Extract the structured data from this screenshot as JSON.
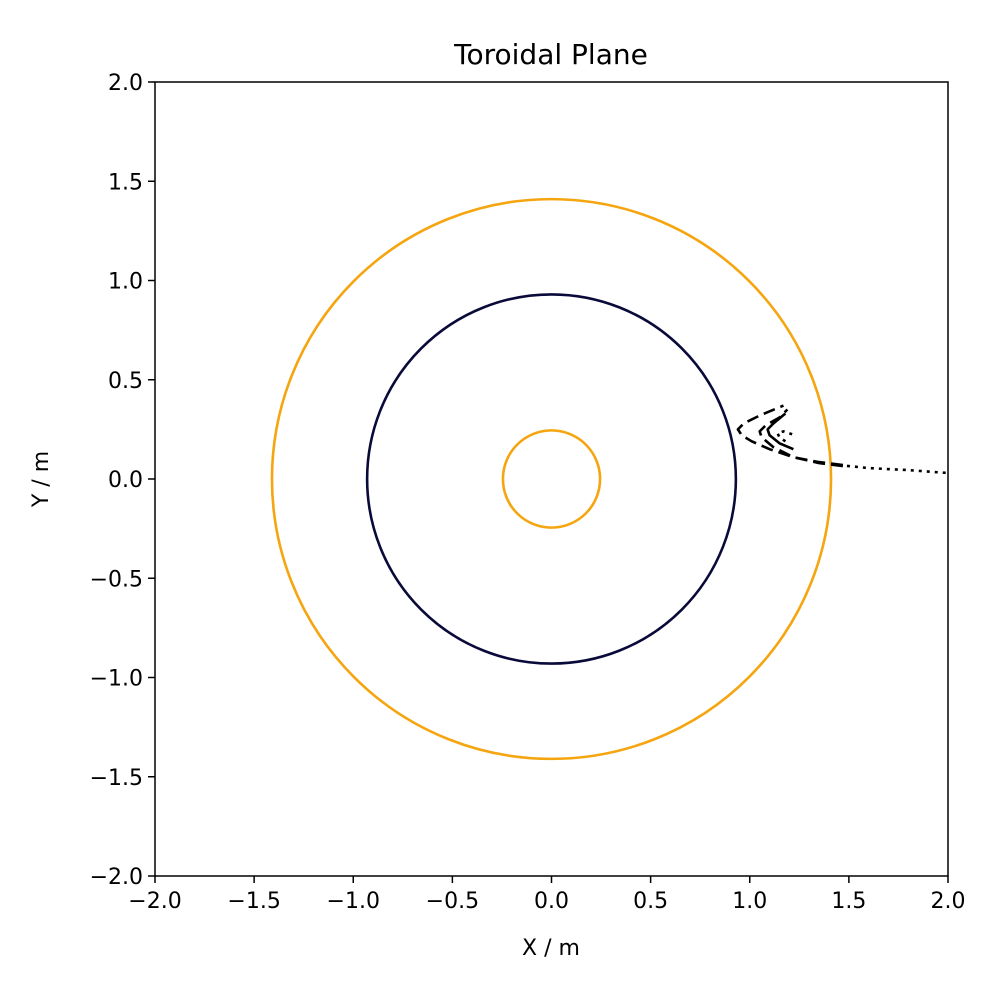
{
  "chart_data": {
    "type": "line",
    "title": "Toroidal Plane",
    "xlabel": "X / m",
    "ylabel": "Y / m",
    "xlim": [
      -2.0,
      2.0
    ],
    "ylim": [
      -2.0,
      2.0
    ],
    "aspect": "equal",
    "grid": false,
    "x_ticks": [
      -2.0,
      -1.5,
      -1.0,
      -0.5,
      0.0,
      0.5,
      1.0,
      1.5,
      2.0
    ],
    "y_ticks": [
      -2.0,
      -1.5,
      -1.0,
      -0.5,
      0.0,
      0.5,
      1.0,
      1.5,
      2.0
    ],
    "x_tick_labels": [
      "−2.0",
      "−1.5",
      "−1.0",
      "−0.5",
      "0.0",
      "0.5",
      "1.0",
      "1.5",
      "2.0"
    ],
    "y_tick_labels": [
      "−2.0",
      "−1.5",
      "−1.0",
      "−0.5",
      "0.0",
      "0.5",
      "1.0",
      "1.5",
      "2.0"
    ],
    "circles": [
      {
        "radius": 1.41,
        "color": "#f5a50f",
        "style": "solid"
      },
      {
        "radius": 0.93,
        "color": "#0a0a3a",
        "style": "solid"
      },
      {
        "radius": 0.245,
        "color": "#f5a50f",
        "style": "solid"
      }
    ],
    "series": [
      {
        "style": "dotted",
        "color": "#000000",
        "x": [
          1.45,
          1.6,
          1.8,
          2.0
        ],
        "y": [
          0.07,
          0.055,
          0.045,
          0.03
        ]
      },
      {
        "style": "dashed",
        "color": "#000000",
        "x": [
          1.47,
          1.35,
          1.22,
          1.1,
          1.01,
          0.96,
          0.94,
          0.97,
          1.05,
          1.17
        ],
        "y": [
          0.07,
          0.085,
          0.11,
          0.15,
          0.19,
          0.22,
          0.25,
          0.28,
          0.32,
          0.37
        ]
      },
      {
        "style": "dashed",
        "color": "#000000",
        "x": [
          1.47,
          1.35,
          1.22,
          1.12,
          1.06,
          1.05,
          1.08,
          1.15,
          1.19
        ],
        "y": [
          0.065,
          0.08,
          0.11,
          0.16,
          0.21,
          0.24,
          0.27,
          0.31,
          0.35
        ]
      },
      {
        "style": "solid",
        "color": "#000000",
        "x": [
          1.22,
          1.15,
          1.1,
          1.09,
          1.12,
          1.18
        ],
        "y": [
          0.15,
          0.18,
          0.22,
          0.25,
          0.28,
          0.33
        ]
      },
      {
        "style": "dotted",
        "color": "#000000",
        "x": [
          1.18,
          1.15,
          1.14,
          1.17,
          1.23
        ],
        "y": [
          0.19,
          0.21,
          0.23,
          0.24,
          0.22
        ]
      }
    ]
  }
}
